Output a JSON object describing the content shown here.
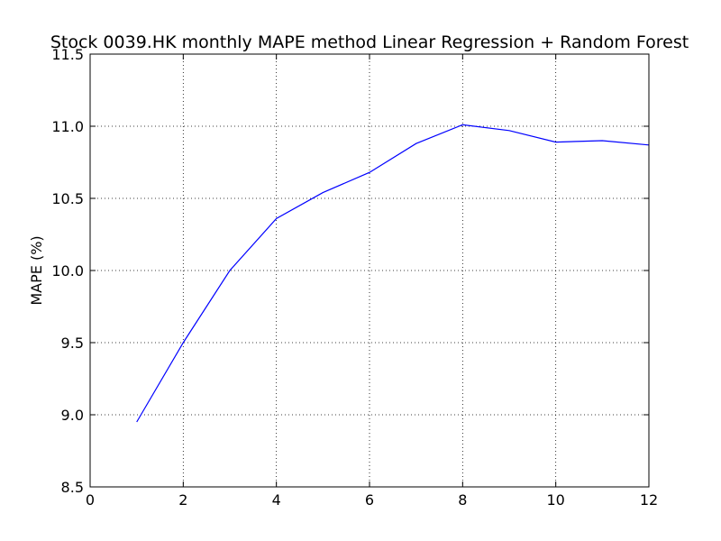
{
  "chart_data": {
    "type": "line",
    "title": "Stock 0039.HK monthly MAPE method Linear Regression + Random Forest",
    "xlabel": "",
    "ylabel": "MAPE (%)",
    "xlim": [
      0,
      12
    ],
    "ylim": [
      8.5,
      11.5
    ],
    "grid": true,
    "x_ticks": [
      "0",
      "2",
      "4",
      "6",
      "8",
      "10",
      "12"
    ],
    "y_ticks": [
      "8.5",
      "9.0",
      "9.5",
      "10.0",
      "10.5",
      "11.0",
      "11.5"
    ],
    "series": [
      {
        "color": "#0000ff",
        "x": [
          1,
          2,
          3,
          4,
          5,
          6,
          7,
          8,
          9,
          10,
          11,
          12
        ],
        "y": [
          8.95,
          9.5,
          10.0,
          10.36,
          10.54,
          10.68,
          10.88,
          11.01,
          10.97,
          10.89,
          10.9,
          10.87
        ]
      }
    ]
  }
}
